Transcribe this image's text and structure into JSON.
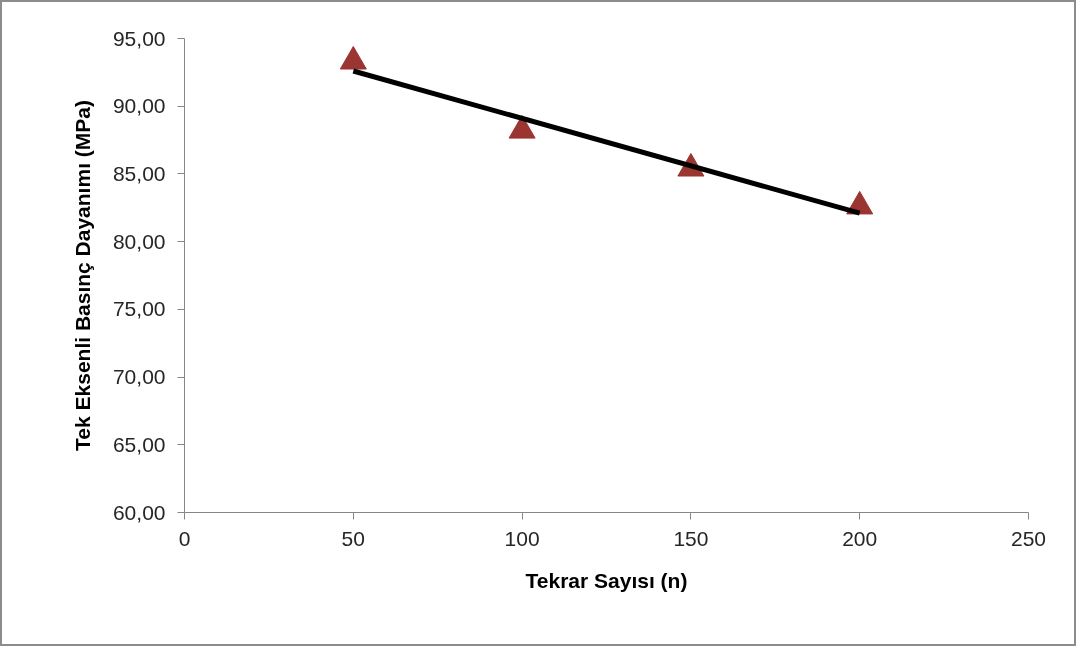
{
  "chart_data": {
    "type": "scatter",
    "xlabel": "Tekrar Sayısı (n)",
    "ylabel": "Tek Eksenli Basınç Dayanımı (MPa)",
    "xlim": [
      0,
      250
    ],
    "xticks": [
      0,
      50,
      100,
      150,
      200,
      250
    ],
    "ylim": [
      60,
      95
    ],
    "yticks": [
      {
        "value": 60,
        "label": "60,00"
      },
      {
        "value": 65,
        "label": "65,00"
      },
      {
        "value": 70,
        "label": "70,00"
      },
      {
        "value": 75,
        "label": "75,00"
      },
      {
        "value": 80,
        "label": "80,00"
      },
      {
        "value": 85,
        "label": "85,00"
      },
      {
        "value": 90,
        "label": "90,00"
      },
      {
        "value": 95,
        "label": "95,00"
      }
    ],
    "series": [
      {
        "color": "#9b3532",
        "marker": "triangle",
        "x": [
          50,
          100,
          150,
          200
        ],
        "values": [
          93.3,
          88.2,
          85.4,
          82.6
        ]
      },
      {
        "type": "line",
        "color": "#000000",
        "line_style": "solid",
        "x": [
          50,
          200
        ],
        "values": [
          92.6,
          82.1
        ]
      }
    ]
  }
}
